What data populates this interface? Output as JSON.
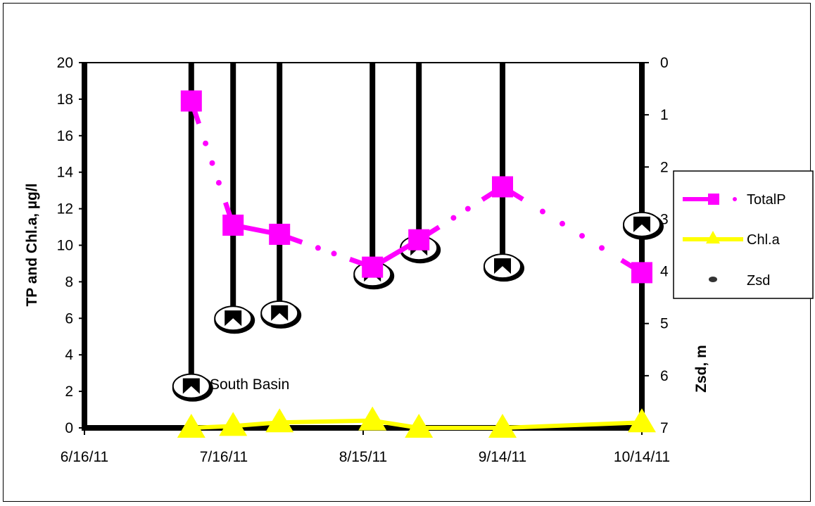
{
  "colors": {
    "tp": "#ff00ff",
    "chla": "#ffff00",
    "zsd": "#000000"
  },
  "chart_data": {
    "type": "line",
    "x_axis": {
      "ticks": [
        "6/16/11",
        "7/16/11",
        "8/15/11",
        "9/14/11",
        "10/14/11"
      ],
      "min": "2011-06-16",
      "max": "2011-10-14"
    },
    "y_left": {
      "label": "TP and Chl.a, µg/l",
      "min": 0,
      "max": 20,
      "step": 2
    },
    "y_right": {
      "label": "Zsd, m",
      "min": 0,
      "max": 7,
      "step": 1,
      "inverted": true
    },
    "annotations": [
      {
        "text": "South Basin",
        "date": "2011-07-14",
        "value": 2.4
      }
    ],
    "legend": {
      "position": "right",
      "items": [
        "TotalP",
        "Chl.a",
        "Zsd"
      ]
    },
    "series": [
      {
        "name": "TotalP",
        "axis": "left",
        "style": "line-with-dotted-gaps",
        "marker": "square",
        "x": [
          "2011-07-09",
          "2011-07-18",
          "2011-07-28",
          "2011-08-17",
          "2011-08-27",
          "2011-09-14",
          "2011-10-14"
        ],
        "values": [
          17.9,
          11.1,
          10.6,
          8.8,
          10.3,
          13.2,
          8.5
        ]
      },
      {
        "name": "Chl.a",
        "axis": "left",
        "marker": "triangle",
        "x": [
          "2011-07-09",
          "2011-07-18",
          "2011-07-28",
          "2011-08-17",
          "2011-08-27",
          "2011-09-14",
          "2011-10-14"
        ],
        "values": [
          0.0,
          0.1,
          0.3,
          0.4,
          0.0,
          0.0,
          0.3
        ]
      },
      {
        "name": "Zsd",
        "axis": "right",
        "style": "drop-lines",
        "marker": "secchi-disk",
        "x": [
          "2011-07-09",
          "2011-07-18",
          "2011-07-28",
          "2011-08-17",
          "2011-08-27",
          "2011-09-14",
          "2011-10-14"
        ],
        "values": [
          6.2,
          4.9,
          4.8,
          4.05,
          3.55,
          3.9,
          3.1
        ]
      }
    ]
  }
}
